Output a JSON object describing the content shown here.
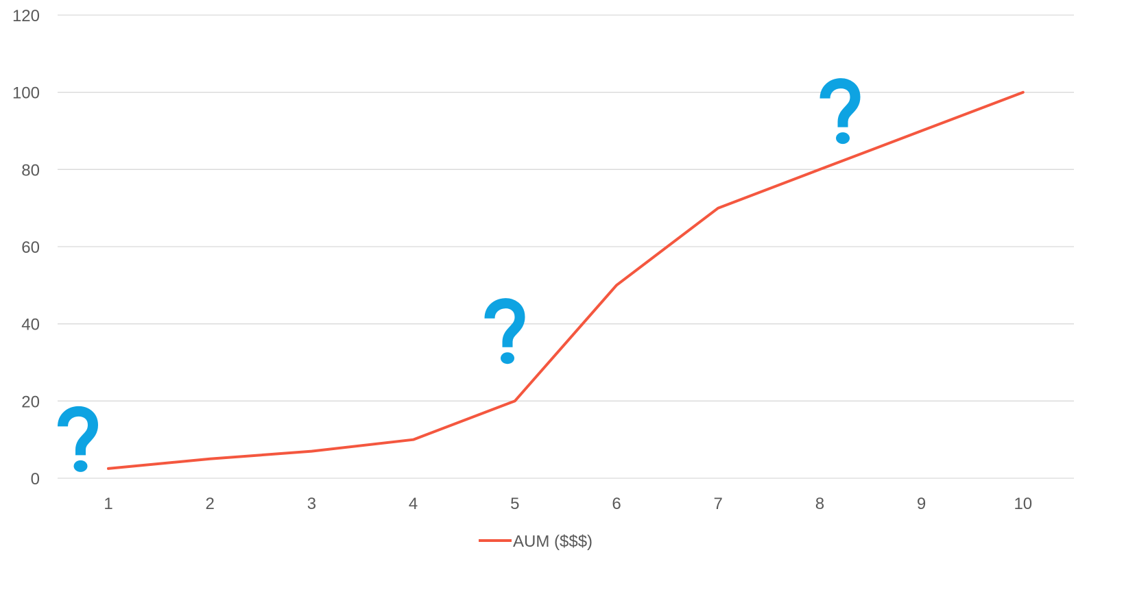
{
  "chart_data": {
    "type": "line",
    "title": "",
    "xlabel": "",
    "ylabel": "",
    "x": [
      1,
      2,
      3,
      4,
      5,
      6,
      7,
      8,
      9,
      10
    ],
    "x_tick_labels": [
      "1",
      "2",
      "3",
      "4",
      "5",
      "6",
      "7",
      "8",
      "9",
      "10"
    ],
    "y_tick_labels": [
      "0",
      "20",
      "40",
      "60",
      "80",
      "100",
      "120"
    ],
    "ylim": [
      0,
      120
    ],
    "grid": true,
    "legend_position": "bottom",
    "series": [
      {
        "name": "AUM ($$$)",
        "color": "#f4573f",
        "values": [
          2.5,
          5,
          7,
          10,
          20,
          50,
          70,
          80,
          90,
          100
        ]
      }
    ],
    "annotations": [
      {
        "symbol": "?",
        "near_x": 0.7,
        "y": 12,
        "color": "#0ea3e2",
        "icon": "question-mark-icon"
      },
      {
        "symbol": "?",
        "near_x": 4.9,
        "y": 40,
        "color": "#0ea3e2",
        "icon": "question-mark-icon"
      },
      {
        "symbol": "?",
        "near_x": 8.2,
        "y": 97,
        "color": "#0ea3e2",
        "icon": "question-mark-icon"
      }
    ]
  }
}
